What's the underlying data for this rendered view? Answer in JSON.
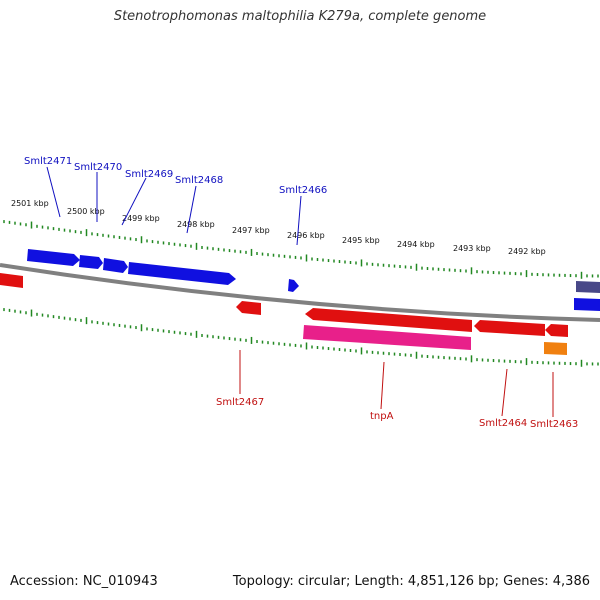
{
  "title": "Stenotrophomonas maltophilia K279a, complete genome",
  "footer": {
    "accession": "Accession: NC_010943",
    "summary": "Topology: circular; Length: 4,851,126 bp; Genes: 4,386"
  },
  "colors": {
    "forward": "#1010e0",
    "reverse": "#e01010",
    "pink": "#e8208a",
    "orange": "#f08010",
    "purple": "#484888",
    "tick": "#228822",
    "backbone": "#808080",
    "label_forward": "#1010c0",
    "label_reverse": "#c01010"
  },
  "scale_labels": [
    "2501 kbp",
    "2500 kbp",
    "2499 kbp",
    "2498 kbp",
    "2497 kbp",
    "2496 kbp",
    "2495 kbp",
    "2494 kbp",
    "2493 kbp",
    "2492 kbp"
  ],
  "gene_labels": {
    "forward": [
      "Smlt2471",
      "Smlt2470",
      "Smlt2469",
      "Smlt2468",
      "Smlt2466"
    ],
    "reverse": [
      "Smlt2467",
      "tnpA",
      "Smlt2464",
      "Smlt2463"
    ]
  }
}
